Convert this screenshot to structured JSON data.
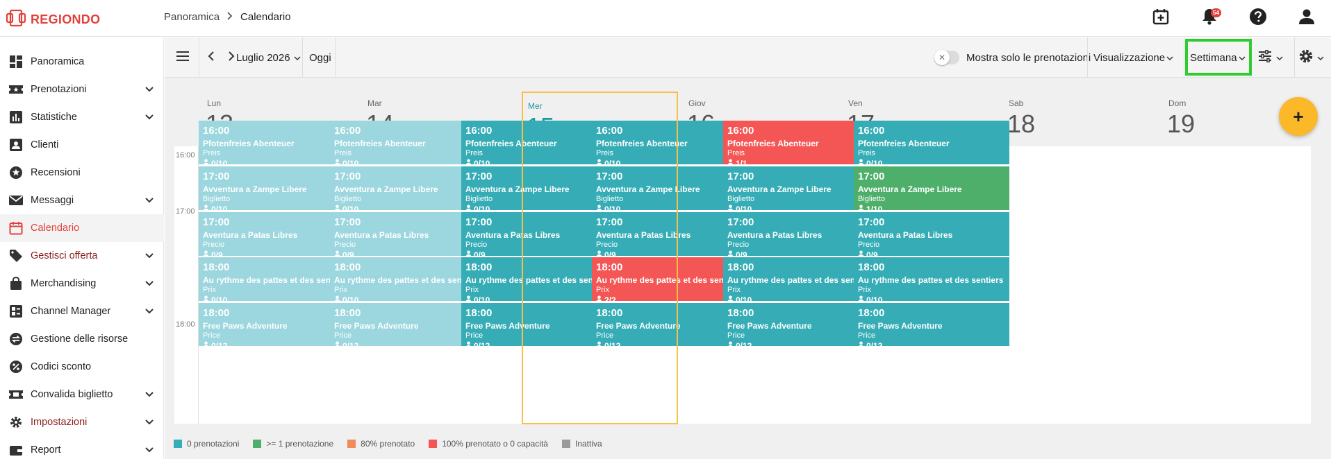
{
  "app": {
    "brand": "REGIONDO",
    "accent": "#e2403a"
  },
  "breadcrumb": {
    "parent": "Panoramica",
    "current": "Calendario"
  },
  "header": {
    "notifications_count": "54"
  },
  "sidebar": {
    "items": [
      {
        "label": "Panoramica",
        "icon": "dashboard-icon",
        "expandable": false
      },
      {
        "label": "Prenotazioni",
        "icon": "ticket-icon",
        "expandable": true
      },
      {
        "label": "Statistiche",
        "icon": "bar-chart-icon",
        "expandable": true
      },
      {
        "label": "Clienti",
        "icon": "contact-icon",
        "expandable": false
      },
      {
        "label": "Recensioni",
        "icon": "star-icon",
        "expandable": false
      },
      {
        "label": "Messaggi",
        "icon": "mail-icon",
        "expandable": true
      },
      {
        "label": "Calendario",
        "icon": "calendar-icon",
        "expandable": false,
        "active": true
      },
      {
        "label": "Gestisci offerta",
        "icon": "tag-icon",
        "expandable": true
      },
      {
        "label": "Merchandising",
        "icon": "bag-icon",
        "expandable": true
      },
      {
        "label": "Channel Manager",
        "icon": "channel-icon",
        "expandable": true
      },
      {
        "label": "Gestione delle risorse",
        "icon": "swap-icon",
        "expandable": false
      },
      {
        "label": "Codici sconto",
        "icon": "percent-icon",
        "expandable": false
      },
      {
        "label": "Convalida biglietto",
        "icon": "ticket-check-icon",
        "expandable": true
      },
      {
        "label": "Impostazioni",
        "icon": "gear-icon",
        "expandable": true
      },
      {
        "label": "Report",
        "icon": "wallet-icon",
        "expandable": true
      }
    ]
  },
  "toolbar": {
    "month_label": "Luglio 2026",
    "today_label": "Oggi",
    "toggle_label": "Mostra solo le prenotazioni",
    "view_label": "Visualizzazione",
    "range_label": "Settimana"
  },
  "days": [
    {
      "name": "Lun",
      "num": "13"
    },
    {
      "name": "Mar",
      "num": "14"
    },
    {
      "name": "Mer",
      "num": "15",
      "today": true
    },
    {
      "name": "Giov",
      "num": "16"
    },
    {
      "name": "Ven",
      "num": "17"
    },
    {
      "name": "Sab",
      "num": "18"
    },
    {
      "name": "Dom",
      "num": "19"
    }
  ],
  "time_labels": [
    "16:00",
    "17:00",
    "18:00"
  ],
  "event_slots": [
    {
      "time": "16:00",
      "title": "Pfotenfreies Abenteuer",
      "type": "Preis"
    },
    {
      "time": "17:00",
      "title": "Avventura a Zampe Libere",
      "type": "Biglietto"
    },
    {
      "time": "17:00",
      "title": "Aventura a Patas Libres",
      "type": "Precio"
    },
    {
      "time": "18:00",
      "title": "Au rythme des pattes et des sentiers",
      "type": "Prix"
    },
    {
      "time": "18:00",
      "title": "Free Paws Adventure",
      "type": "Price"
    }
  ],
  "events": [
    [
      {
        "count": "0/10",
        "status": "past"
      },
      {
        "count": "0/10",
        "status": "past"
      },
      {
        "count": "0/9",
        "status": "past"
      },
      {
        "count": "0/10",
        "status": "past"
      },
      {
        "count": "0/12",
        "status": "past"
      }
    ],
    [
      {
        "count": "0/10",
        "status": "past"
      },
      {
        "count": "0/10",
        "status": "past"
      },
      {
        "count": "0/9",
        "status": "past"
      },
      {
        "count": "0/10",
        "status": "past"
      },
      {
        "count": "0/12",
        "status": "past"
      }
    ],
    [
      {
        "count": "0/10",
        "status": "zero"
      },
      {
        "count": "0/10",
        "status": "zero"
      },
      {
        "count": "0/9",
        "status": "zero"
      },
      {
        "count": "0/10",
        "status": "zero"
      },
      {
        "count": "0/12",
        "status": "zero"
      }
    ],
    [
      {
        "count": "0/10",
        "status": "zero"
      },
      {
        "count": "0/10",
        "status": "zero"
      },
      {
        "count": "0/9",
        "status": "zero"
      },
      {
        "count": "2/2",
        "status": "full"
      },
      {
        "count": "0/12",
        "status": "zero"
      }
    ],
    [
      {
        "count": "1/1",
        "status": "full"
      },
      {
        "count": "0/10",
        "status": "zero"
      },
      {
        "count": "0/9",
        "status": "zero"
      },
      {
        "count": "0/10",
        "status": "zero"
      },
      {
        "count": "0/12",
        "status": "zero"
      }
    ],
    [
      {
        "count": "0/10",
        "status": "zero"
      },
      {
        "count": "1/10",
        "status": "booked"
      },
      {
        "count": "0/9",
        "status": "zero"
      },
      {
        "count": "0/10",
        "status": "zero"
      },
      {
        "count": "0/12",
        "status": "zero"
      }
    ]
  ],
  "legend": [
    {
      "label": "0 prenotazioni",
      "color": "#36adb6"
    },
    {
      "label": ">= 1 prenotazione",
      "color": "#4eaf6a"
    },
    {
      "label": "80% prenotato",
      "color": "#f08b5b"
    },
    {
      "label": "100% prenotato o 0 capacità",
      "color": "#f45656"
    },
    {
      "label": "Inattiva",
      "color": "#9b9b9b"
    }
  ],
  "fab_label": "+"
}
